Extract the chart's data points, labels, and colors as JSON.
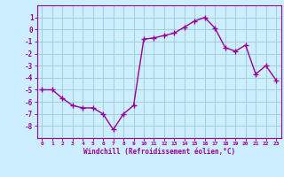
{
  "x": [
    0,
    1,
    2,
    3,
    4,
    5,
    6,
    7,
    8,
    9,
    10,
    11,
    12,
    13,
    14,
    15,
    16,
    17,
    18,
    19,
    20,
    21,
    22,
    23
  ],
  "y": [
    -5.0,
    -5.0,
    -5.7,
    -6.3,
    -6.5,
    -6.5,
    -7.0,
    -8.3,
    -7.0,
    -6.3,
    -0.8,
    -0.7,
    -0.5,
    -0.3,
    0.2,
    0.7,
    1.0,
    0.1,
    -1.5,
    -1.8,
    -1.3,
    -3.7,
    -3.0,
    -4.2
  ],
  "line_color": "#990099",
  "marker": "+",
  "marker_size": 4,
  "bg_color": "#cceeff",
  "grid_color": "#99cccc",
  "xlabel": "Windchill (Refroidissement éolien,°C)",
  "xlabel_color": "#990099",
  "tick_color": "#990099",
  "ylim": [
    -9,
    2
  ],
  "xlim": [
    -0.5,
    23.5
  ],
  "yticks": [
    -8,
    -7,
    -6,
    -5,
    -4,
    -3,
    -2,
    -1,
    0,
    1
  ],
  "xticks": [
    0,
    1,
    2,
    3,
    4,
    5,
    6,
    7,
    8,
    9,
    10,
    11,
    12,
    13,
    14,
    15,
    16,
    17,
    18,
    19,
    20,
    21,
    22,
    23
  ],
  "xtick_labels": [
    "0",
    "1",
    "2",
    "3",
    "4",
    "5",
    "6",
    "7",
    "8",
    "9",
    "10",
    "11",
    "12",
    "13",
    "14",
    "15",
    "16",
    "17",
    "18",
    "19",
    "20",
    "21",
    "22",
    "23"
  ],
  "spine_color": "#990099",
  "linewidth": 1.0,
  "markeredgewidth": 1.0
}
